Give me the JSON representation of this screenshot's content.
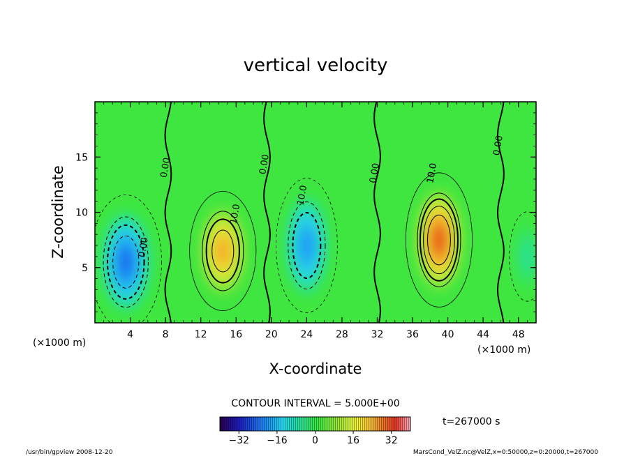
{
  "chart_data": {
    "type": "heatmap",
    "title": "vertical velocity",
    "xlabel": "X-coordinate",
    "ylabel": "Z-coordinate",
    "x_unit": "(×1000 m)",
    "y_unit": "(×1000 m)",
    "xlim": [
      0,
      50
    ],
    "ylim": [
      0,
      20
    ],
    "x_ticks": [
      4,
      8,
      12,
      16,
      20,
      24,
      28,
      32,
      36,
      40,
      44,
      48
    ],
    "y_ticks": [
      5,
      10,
      15
    ],
    "contour_interval_text": "CONTOUR INTERVAL = 5.000E+00",
    "contour_labels": [
      "0.00",
      "0.00",
      "0.00",
      "0.00",
      "0.00",
      "10.0",
      "10.0",
      "10.0",
      "10.0"
    ],
    "colorbar": {
      "range": [
        -40,
        40
      ],
      "ticks": [
        -32,
        -16,
        0,
        16,
        32
      ],
      "tick_labels": [
        "−32",
        "−16",
        "0",
        "16",
        "32"
      ]
    },
    "time_label": "t=267000 s",
    "cells": [
      {
        "x": 3.5,
        "z": 5.5,
        "w": 2.8,
        "h": 4.5,
        "amp": -17
      },
      {
        "x": 14.5,
        "z": 6.5,
        "w": 2.6,
        "h": 4.0,
        "amp": 16
      },
      {
        "x": 24.0,
        "z": 7.0,
        "w": 2.4,
        "h": 4.5,
        "amp": -14
      },
      {
        "x": 39.0,
        "z": 7.5,
        "w": 2.6,
        "h": 4.5,
        "amp": 22
      },
      {
        "x": 49.0,
        "z": 6.0,
        "w": 1.4,
        "h": 3.0,
        "amp": -4
      }
    ]
  },
  "footer": {
    "left": "/usr/bin/gpview  2008-12-20",
    "right": "MarsCond_VelZ.nc@VelZ,x=0:50000,z=0:20000,t=267000"
  },
  "colors": {
    "background_field": "#3fe63f",
    "frame": "#000000"
  }
}
